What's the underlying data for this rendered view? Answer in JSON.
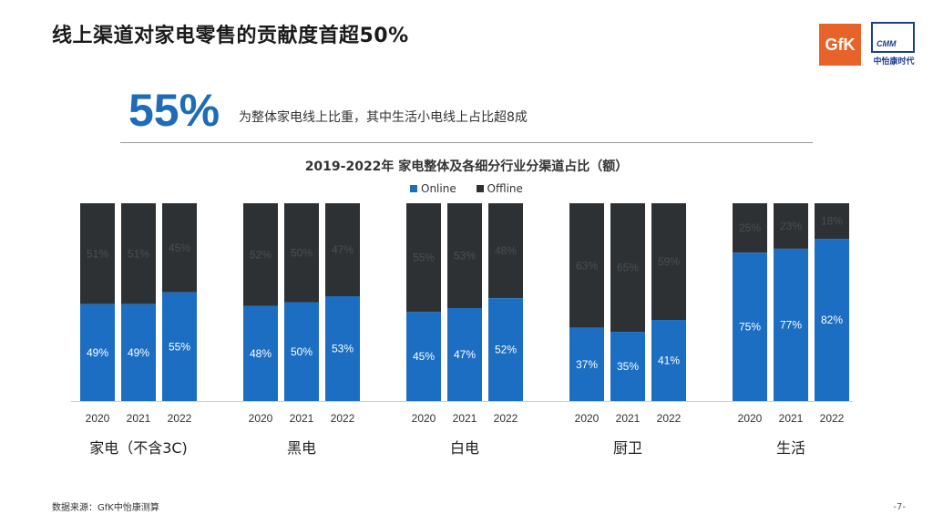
{
  "header": {
    "title": "线上渠道对家电零售的贡献度首超50%"
  },
  "logos": {
    "gfk": "GfK",
    "cmm_mark": "CMM",
    "cmm_name": "中怡康时代"
  },
  "kpi": {
    "value": "55%",
    "text": "为整体家电线上比重，其中生活小电线上占比超8成"
  },
  "chart_data": {
    "type": "bar",
    "stacked": true,
    "title": "2019-2022年 家电整体及各细分行业分渠道占比（额）",
    "legend_position": "top",
    "ylim": [
      0,
      100
    ],
    "groups": [
      {
        "label": "家电（不含3C)",
        "years": [
          "2020",
          "2021",
          "2022"
        ],
        "online": [
          49,
          49,
          55
        ],
        "offline": [
          51,
          51,
          45
        ]
      },
      {
        "label": "黑电",
        "years": [
          "2020",
          "2021",
          "2022"
        ],
        "online": [
          48,
          50,
          53
        ],
        "offline": [
          52,
          50,
          47
        ]
      },
      {
        "label": "白电",
        "years": [
          "2020",
          "2021",
          "2022"
        ],
        "online": [
          45,
          47,
          52
        ],
        "offline": [
          55,
          53,
          48
        ]
      },
      {
        "label": "厨卫",
        "years": [
          "2020",
          "2021",
          "2022"
        ],
        "online": [
          37,
          35,
          41
        ],
        "offline": [
          63,
          65,
          59
        ]
      },
      {
        "label": "生活",
        "years": [
          "2020",
          "2021",
          "2022"
        ],
        "online": [
          75,
          77,
          82
        ],
        "offline": [
          25,
          23,
          18
        ]
      }
    ],
    "series": [
      {
        "name": "Online",
        "color": "#1b6ec2"
      },
      {
        "name": "Offline",
        "color": "#2d3134"
      }
    ]
  },
  "footer": {
    "source": "数据来源：GfK中怡康测算",
    "page": "-7-"
  }
}
